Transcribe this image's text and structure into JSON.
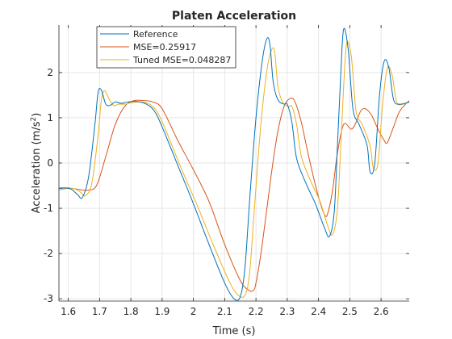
{
  "chart_data": {
    "type": "line",
    "title": "Platen Acceleration",
    "xlabel": "Time (s)",
    "ylabel_main": "Acceleration (m/s",
    "ylabel_sup": "2",
    "ylabel_close": ")",
    "xlim": [
      1.57,
      2.69
    ],
    "ylim": [
      -3.05,
      3.05
    ],
    "grid": true,
    "legend_position": "top-left",
    "xticks": [
      1.6,
      1.7,
      1.8,
      1.9,
      2.0,
      2.1,
      2.2,
      2.3,
      2.4,
      2.5,
      2.6
    ],
    "xtick_labels": [
      "1.6",
      "1.7",
      "1.8",
      "1.9",
      "2",
      "2.1",
      "2.2",
      "2.3",
      "2.4",
      "2.5",
      "2.6"
    ],
    "yticks": [
      -3,
      -2,
      -1,
      0,
      1,
      2
    ],
    "ytick_labels": [
      "-3",
      "-2",
      "-1",
      "0",
      "1",
      "2"
    ],
    "series": [
      {
        "name": "Reference",
        "color": "#0072BD",
        "x": [
          1.57,
          1.59,
          1.61,
          1.63,
          1.645,
          1.665,
          1.685,
          1.695,
          1.705,
          1.72,
          1.735,
          1.75,
          1.77,
          1.79,
          1.82,
          1.85,
          1.875,
          1.9,
          1.95,
          2.0,
          2.05,
          2.1,
          2.13,
          2.15,
          2.165,
          2.18,
          2.2,
          2.22,
          2.235,
          2.245,
          2.255,
          2.27,
          2.29,
          2.3,
          2.315,
          2.33,
          2.36,
          2.39,
          2.42,
          2.435,
          2.45,
          2.46,
          2.47,
          2.48,
          2.495,
          2.51,
          2.53,
          2.555,
          2.565,
          2.58,
          2.595,
          2.61,
          2.625,
          2.64,
          2.66,
          2.69
        ],
        "y": [
          -0.57,
          -0.55,
          -0.58,
          -0.7,
          -0.76,
          -0.3,
          0.85,
          1.55,
          1.62,
          1.3,
          1.28,
          1.35,
          1.32,
          1.35,
          1.36,
          1.3,
          1.15,
          0.8,
          -0.05,
          -0.9,
          -1.8,
          -2.65,
          -3.0,
          -2.95,
          -2.3,
          -0.8,
          1.0,
          2.25,
          2.75,
          2.6,
          1.8,
          1.4,
          1.3,
          1.3,
          0.9,
          0.1,
          -0.45,
          -0.9,
          -1.45,
          -1.62,
          -1.1,
          0.3,
          1.8,
          2.95,
          2.5,
          1.2,
          0.85,
          0.4,
          -0.2,
          0.0,
          1.5,
          2.25,
          2.1,
          1.4,
          1.3,
          1.35
        ]
      },
      {
        "name": "MSE=0.25917",
        "color": "#D95319",
        "x": [
          1.57,
          1.6,
          1.63,
          1.66,
          1.69,
          1.72,
          1.75,
          1.78,
          1.81,
          1.84,
          1.87,
          1.9,
          1.95,
          2.0,
          2.05,
          2.1,
          2.15,
          2.175,
          2.19,
          2.2,
          2.22,
          2.25,
          2.27,
          2.29,
          2.31,
          2.325,
          2.345,
          2.37,
          2.4,
          2.42,
          2.43,
          2.445,
          2.46,
          2.48,
          2.505,
          2.52,
          2.535,
          2.55,
          2.57,
          2.59,
          2.61,
          2.62,
          2.64,
          2.66,
          2.69
        ],
        "y": [
          -0.55,
          -0.55,
          -0.58,
          -0.6,
          -0.5,
          0.15,
          0.85,
          1.25,
          1.38,
          1.38,
          1.35,
          1.2,
          0.5,
          -0.15,
          -0.85,
          -1.8,
          -2.6,
          -2.8,
          -2.82,
          -2.65,
          -1.8,
          -0.2,
          0.7,
          1.25,
          1.43,
          1.35,
          0.9,
          0.1,
          -0.75,
          -1.15,
          -1.1,
          -0.6,
          0.2,
          0.85,
          0.75,
          0.9,
          1.15,
          1.2,
          1.05,
          0.75,
          0.5,
          0.45,
          0.8,
          1.15,
          1.38
        ]
      },
      {
        "name": "Tuned MSE=0.048287",
        "color": "#EDB120",
        "x": [
          1.57,
          1.6,
          1.62,
          1.64,
          1.655,
          1.675,
          1.695,
          1.705,
          1.715,
          1.73,
          1.745,
          1.76,
          1.78,
          1.8,
          1.83,
          1.86,
          1.885,
          1.91,
          1.96,
          2.01,
          2.06,
          2.11,
          2.14,
          2.165,
          2.18,
          2.195,
          2.215,
          2.235,
          2.25,
          2.26,
          2.27,
          2.285,
          2.305,
          2.315,
          2.33,
          2.345,
          2.375,
          2.405,
          2.43,
          2.445,
          2.46,
          2.47,
          2.48,
          2.49,
          2.505,
          2.52,
          2.54,
          2.565,
          2.575,
          2.59,
          2.605,
          2.62,
          2.635,
          2.65,
          2.67,
          2.69
        ],
        "y": [
          -0.6,
          -0.56,
          -0.57,
          -0.65,
          -0.72,
          -0.45,
          0.6,
          1.35,
          1.6,
          1.42,
          1.27,
          1.3,
          1.3,
          1.33,
          1.35,
          1.3,
          1.12,
          0.75,
          -0.1,
          -0.9,
          -1.75,
          -2.55,
          -2.9,
          -2.92,
          -2.4,
          -1.0,
          0.8,
          2.05,
          2.5,
          2.45,
          1.7,
          1.35,
          1.25,
          1.25,
          0.85,
          0.15,
          -0.4,
          -0.85,
          -1.4,
          -1.58,
          -1.05,
          0.2,
          1.65,
          2.65,
          2.35,
          1.15,
          0.85,
          0.38,
          -0.1,
          0.0,
          1.3,
          2.1,
          1.95,
          1.35,
          1.3,
          1.35
        ]
      }
    ]
  }
}
